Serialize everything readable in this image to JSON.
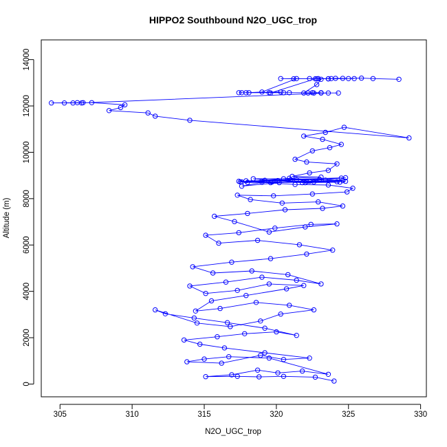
{
  "chart_data": {
    "type": "line",
    "title": "HIPPO2 Southbound N2O_UGC_trop",
    "xlabel": "N2O_UGC_trop",
    "ylabel": "Altitude (m)",
    "xlim": [
      303.7,
      330.4
    ],
    "ylim": [
      -550,
      14850
    ],
    "xticks": [
      305,
      310,
      315,
      320,
      325,
      330
    ],
    "yticks": [
      0,
      2000,
      4000,
      6000,
      8000,
      10000,
      12000,
      14000
    ],
    "grid": false,
    "legend": "none",
    "marker": "open-circle",
    "series": [
      {
        "color": "#0000ff",
        "x": [
          324.0,
          322.7,
          320.5,
          318.8,
          317.3,
          315.1,
          316.9,
          318.7,
          320.1,
          321.8,
          323.6,
          319.5,
          316.7,
          315.0,
          313.8,
          316.2,
          318.9,
          320.5,
          322.3,
          319.2,
          316.4,
          314.7,
          313.6,
          315.9,
          317.8,
          320.0,
          321.4,
          319.2,
          316.6,
          314.3,
          312.3,
          311.6,
          314.5,
          316.8,
          318.9,
          320.3,
          322.6,
          320.9,
          318.6,
          316.1,
          314.4,
          315.5,
          317.9,
          320.7,
          321.9,
          319.5,
          317.3,
          315.1,
          314.0,
          316.5,
          319.0,
          321.4,
          323.1,
          320.8,
          318.3,
          315.6,
          314.2,
          316.9,
          319.6,
          322.1,
          323.9,
          321.6,
          318.7,
          316.0,
          315.1,
          317.4,
          319.9,
          322.4,
          324.2,
          322.0,
          319.5,
          317.1,
          315.7,
          318.0,
          320.6,
          323.2,
          324.6,
          322.9,
          320.4,
          318.2,
          317.3,
          319.8,
          322.5,
          324.9,
          325.3,
          323.6,
          321.3,
          319.0,
          317.6,
          320.2,
          322.6,
          324.8,
          323.4,
          321.0,
          319.0,
          317.5,
          319.6,
          322.1,
          324.6,
          323.0,
          320.5,
          318.4,
          321.8,
          324.2,
          318.0,
          317.4,
          319.7,
          322.0,
          324.4,
          320.1,
          317.9,
          322.3,
          324.5,
          321.4,
          319.2,
          324.8,
          317.6,
          320.9,
          323.1,
          321.1,
          322.3,
          323.6,
          324.2,
          322.1,
          321.3,
          322.5,
          323.7,
          324.5,
          323.2,
          321.9,
          323.4,
          324.7,
          329.2,
          314.0,
          311.6,
          311.1,
          308.4,
          309.2,
          309.5,
          307.2,
          306.6,
          306.2,
          304.4,
          305.3,
          305.9,
          306.5,
          323.6,
          324.3,
          323.1,
          322.6,
          322.2,
          321.9,
          322.8,
          323.1,
          322.8,
          321.4,
          319.0,
          317.9,
          319.5,
          320.5,
          322.5,
          323.1,
          320.9,
          318.1,
          317.4,
          317.6,
          320.3,
          319.6,
          322.7,
          323.6,
          325.4,
          323.6,
          322.3,
          321.2,
          320.3,
          322.9,
          323.8,
          324.1,
          324.6,
          325.0,
          325.9,
          326.7,
          328.5
        ],
        "y": [
          130,
          300,
          330,
          310,
          330,
          320,
          400,
          600,
          480,
          560,
          420,
          1120,
          1180,
          1080,
          960,
          900,
          1240,
          1060,
          1120,
          1350,
          1560,
          1720,
          1900,
          2040,
          2170,
          2250,
          2100,
          2410,
          2650,
          2850,
          3030,
          3200,
          2630,
          2480,
          2720,
          3020,
          3200,
          3400,
          3520,
          3260,
          3150,
          3590,
          3820,
          4110,
          4250,
          4320,
          4040,
          3910,
          4230,
          4400,
          4610,
          4480,
          4320,
          4720,
          4880,
          4790,
          5060,
          5260,
          5410,
          5610,
          5780,
          6010,
          6200,
          6080,
          6420,
          6530,
          6730,
          6890,
          6910,
          6780,
          6560,
          7010,
          7240,
          7360,
          7520,
          7580,
          7680,
          7860,
          7810,
          7960,
          8150,
          8120,
          8200,
          8290,
          8450,
          8590,
          8610,
          8700,
          8540,
          8690,
          8720,
          8750,
          8800,
          8810,
          8760,
          8720,
          8690,
          8740,
          8780,
          8830,
          8860,
          8860,
          8690,
          8730,
          8700,
          8750,
          8720,
          8690,
          8710,
          8780,
          8770,
          8750,
          8890,
          8820,
          8790,
          8900,
          8720,
          8880,
          8930,
          8960,
          9110,
          9220,
          9500,
          9580,
          9700,
          10060,
          10200,
          10340,
          10560,
          10700,
          10860,
          11080,
          10620,
          11380,
          11560,
          11700,
          11800,
          11930,
          12050,
          12140,
          12140,
          12140,
          12130,
          12130,
          12130,
          12130,
          12560,
          12560,
          12560,
          12560,
          12560,
          12560,
          12920,
          13150,
          13170,
          13180,
          12600,
          12570,
          12570,
          12570,
          12570,
          12570,
          12570,
          12570,
          12570,
          12570,
          12600,
          12560,
          13170,
          13170,
          13180,
          13170,
          13180,
          13170,
          13180,
          13180,
          13180,
          13190,
          13190,
          13180,
          13200,
          13180,
          13150
        ]
      }
    ]
  }
}
